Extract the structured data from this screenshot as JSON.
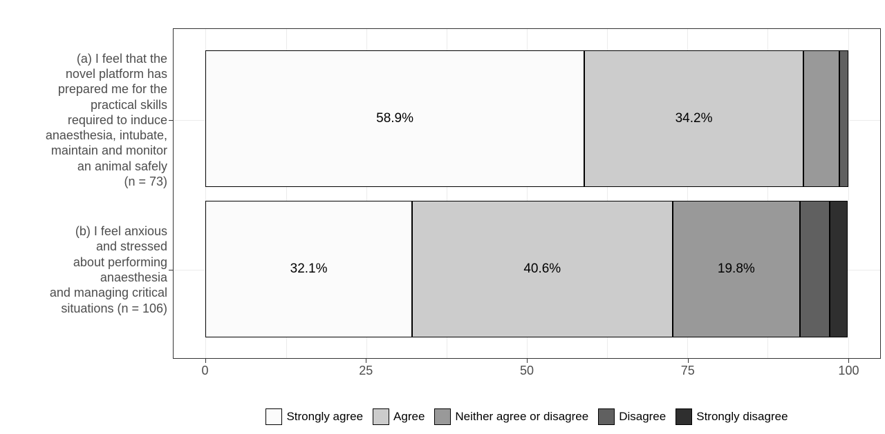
{
  "chart_data": {
    "type": "bar",
    "subtype": "horizontal-stacked-likert",
    "orientation": "horizontal",
    "stacked": true,
    "values_unit": "percent",
    "xlim": [
      0,
      100
    ],
    "x_axis": {
      "ticks": [
        0,
        25,
        50,
        75,
        100
      ],
      "tick_labels": [
        "0",
        "25",
        "50",
        "75",
        "100"
      ],
      "minor_ticks": [
        12.5,
        37.5,
        62.5,
        87.5
      ]
    },
    "categories": [
      {
        "id": "a",
        "n": 73,
        "label_lines": [
          "(a) I feel that the",
          "novel platform has",
          "prepared me for the",
          "practical skills",
          "required to induce",
          "anaesthesia, intubate,",
          "maintain and monitor",
          "an animal safely",
          "(n = 73)"
        ]
      },
      {
        "id": "b",
        "n": 106,
        "label_lines": [
          "(b) I feel anxious",
          "and stressed",
          "about performing",
          "anaesthesia",
          "and managing critical",
          "situations (n = 106)"
        ]
      }
    ],
    "series": [
      {
        "name": "Strongly agree",
        "color": "#FBFBFB",
        "values": [
          58.9,
          32.1
        ],
        "labels": [
          "58.9%",
          "32.1%"
        ]
      },
      {
        "name": "Agree",
        "color": "#CCCCCC",
        "values": [
          34.2,
          40.6
        ],
        "labels": [
          "34.2%",
          "40.6%"
        ]
      },
      {
        "name": "Neither agree or disagree",
        "color": "#999999",
        "values": [
          5.5,
          19.8
        ],
        "labels": [
          "",
          "19.8%"
        ]
      },
      {
        "name": "Disagree",
        "color": "#606060",
        "values": [
          1.4,
          4.7
        ],
        "labels": [
          "",
          ""
        ]
      },
      {
        "name": "Strongly disagree",
        "color": "#2F2F2F",
        "values": [
          0,
          2.8
        ],
        "labels": [
          "",
          ""
        ]
      }
    ],
    "legend_position": "bottom",
    "grid": "vertical-major-minor",
    "styles": {
      "axis_text_color": "#4D4D4D",
      "gridline_color": "#EBEBEB",
      "panel_border_color": "#333333",
      "bar_border_color": "#000000",
      "value_label_color": "#000000",
      "background_color": "#FFFFFF"
    }
  }
}
